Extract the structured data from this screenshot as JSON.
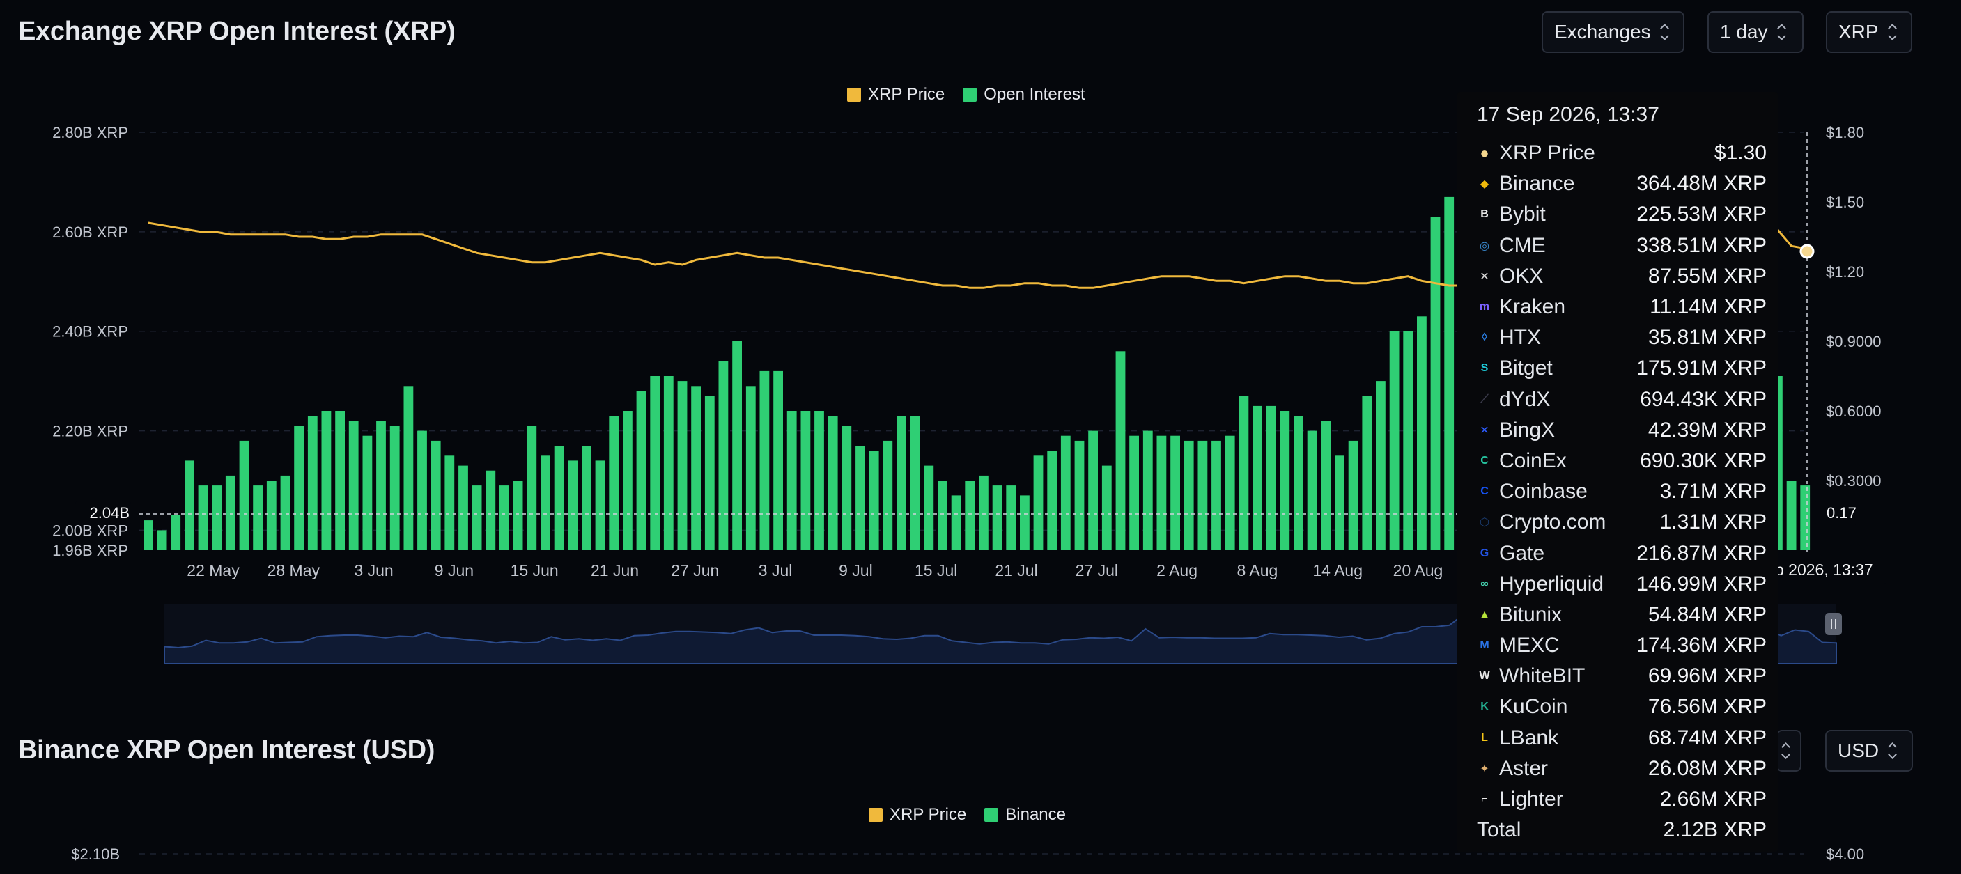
{
  "header": {
    "title": "Exchange XRP Open Interest (XRP)",
    "filters": [
      "Exchanges",
      "1 day",
      "XRP"
    ]
  },
  "second_header": {
    "title": "Binance XRP Open Interest (USD)",
    "currency": "USD",
    "legend": [
      "XRP Price",
      "Binance"
    ],
    "y_left_top": "$2.10B",
    "y_right_top": "$4.00"
  },
  "colors": {
    "bars": "#2fcf74",
    "price": "#f0b93c",
    "background": "#05070c",
    "navigator": "#2b3f72"
  },
  "chart_data": {
    "type": "bar",
    "title": "Exchange XRP Open Interest (XRP)",
    "legend": [
      "XRP Price",
      "Open Interest"
    ],
    "legend_position": "top-center",
    "grid": true,
    "y_left_ticks": [
      "2.80B XRP",
      "2.60B XRP",
      "2.40B XRP",
      "2.20B XRP",
      "2.00B XRP",
      "1.96B XRP"
    ],
    "y_left_range": [
      1.96,
      2.8
    ],
    "y_right_ticks": [
      "$1.80",
      "$1.50",
      "$1.20",
      "$0.9000",
      "$0.6000",
      "$0.3000"
    ],
    "y_right_range": [
      0,
      1.8
    ],
    "x_ticks": [
      "22 May",
      "28 May",
      "3 Jun",
      "9 Jun",
      "15 Jun",
      "21 Jun",
      "27 Jun",
      "3 Jul",
      "9 Jul",
      "15 Jul",
      "21 Jul",
      "27 Jul",
      "2 Aug",
      "8 Aug",
      "14 Aug",
      "20 Aug"
    ],
    "crosshair_left_label": "2.04B",
    "crosshair_right_label": "0.17",
    "crosshair_date_label": "p 2026, 13:37",
    "series": [
      {
        "name": "Open Interest",
        "unit": "B XRP",
        "values": [
          2.02,
          2.0,
          2.03,
          2.14,
          2.09,
          2.09,
          2.11,
          2.18,
          2.09,
          2.1,
          2.11,
          2.21,
          2.23,
          2.24,
          2.24,
          2.22,
          2.19,
          2.22,
          2.21,
          2.29,
          2.2,
          2.18,
          2.15,
          2.13,
          2.09,
          2.12,
          2.09,
          2.1,
          2.21,
          2.15,
          2.17,
          2.14,
          2.17,
          2.14,
          2.23,
          2.24,
          2.28,
          2.31,
          2.31,
          2.3,
          2.29,
          2.27,
          2.34,
          2.38,
          2.29,
          2.32,
          2.32,
          2.24,
          2.24,
          2.24,
          2.23,
          2.21,
          2.17,
          2.16,
          2.18,
          2.23,
          2.23,
          2.13,
          2.1,
          2.07,
          2.1,
          2.11,
          2.09,
          2.09,
          2.07,
          2.15,
          2.16,
          2.19,
          2.18,
          2.2,
          2.13,
          2.36,
          2.19,
          2.2,
          2.19,
          2.19,
          2.18,
          2.18,
          2.18,
          2.19,
          2.27,
          2.25,
          2.25,
          2.24,
          2.23,
          2.2,
          2.22,
          2.15,
          2.18,
          2.27,
          2.3,
          2.4,
          2.4,
          2.43,
          2.63,
          2.67,
          2.66,
          2.66,
          2.76,
          2.71,
          2.75,
          2.73,
          2.71,
          2.54,
          2.4,
          2.43,
          2.44,
          2.36,
          2.4,
          2.51,
          2.59,
          2.66,
          2.72,
          2.76,
          2.66,
          2.5,
          2.36,
          2.23,
          2.34,
          2.31,
          2.1,
          2.09
        ]
      },
      {
        "name": "XRP Price",
        "unit": "USD",
        "values": [
          1.41,
          1.4,
          1.39,
          1.38,
          1.37,
          1.37,
          1.36,
          1.36,
          1.36,
          1.36,
          1.36,
          1.35,
          1.35,
          1.34,
          1.34,
          1.35,
          1.35,
          1.36,
          1.36,
          1.36,
          1.36,
          1.34,
          1.32,
          1.3,
          1.28,
          1.27,
          1.26,
          1.25,
          1.24,
          1.24,
          1.25,
          1.26,
          1.27,
          1.28,
          1.27,
          1.26,
          1.25,
          1.23,
          1.24,
          1.23,
          1.25,
          1.26,
          1.27,
          1.28,
          1.27,
          1.26,
          1.26,
          1.25,
          1.24,
          1.23,
          1.22,
          1.21,
          1.2,
          1.19,
          1.18,
          1.17,
          1.16,
          1.15,
          1.14,
          1.14,
          1.13,
          1.13,
          1.14,
          1.14,
          1.15,
          1.15,
          1.14,
          1.14,
          1.13,
          1.13,
          1.14,
          1.15,
          1.16,
          1.17,
          1.18,
          1.18,
          1.18,
          1.17,
          1.16,
          1.16,
          1.15,
          1.16,
          1.17,
          1.18,
          1.18,
          1.17,
          1.16,
          1.16,
          1.15,
          1.15,
          1.16,
          1.17,
          1.18,
          1.16,
          1.15,
          1.14,
          1.14,
          1.13,
          1.13,
          1.12,
          1.12,
          1.12,
          1.12,
          1.12,
          1.12,
          1.12,
          1.11,
          1.11,
          1.12,
          1.11,
          1.11,
          1.12,
          1.11,
          1.18,
          1.32,
          1.38,
          1.4,
          1.4,
          1.39,
          1.38,
          1.31,
          1.3
        ]
      }
    ]
  },
  "tooltip": {
    "date": "17 Sep 2026, 13:37",
    "rows": [
      {
        "name": "XRP Price",
        "value": "$1.30",
        "icon": "price-dot-icon",
        "color": "#f5d78f"
      },
      {
        "name": "Binance",
        "value": "364.48M XRP",
        "icon": "binance-icon",
        "color": "#f0b90b"
      },
      {
        "name": "Bybit",
        "value": "225.53M XRP",
        "icon": "bybit-icon",
        "color": "#e9e9e9"
      },
      {
        "name": "CME",
        "value": "338.51M XRP",
        "icon": "cme-icon",
        "color": "#3c8ed6"
      },
      {
        "name": "OKX",
        "value": "87.55M XRP",
        "icon": "okx-icon",
        "color": "#d8d8d8"
      },
      {
        "name": "Kraken",
        "value": "11.14M XRP",
        "icon": "kraken-icon",
        "color": "#7b61ff"
      },
      {
        "name": "HTX",
        "value": "35.81M XRP",
        "icon": "htx-icon",
        "color": "#2a7de1"
      },
      {
        "name": "Bitget",
        "value": "175.91M XRP",
        "icon": "bitget-icon",
        "color": "#1ec8d6"
      },
      {
        "name": "dYdX",
        "value": "694.43K XRP",
        "icon": "dydx-icon",
        "color": "#3a3a4a"
      },
      {
        "name": "BingX",
        "value": "42.39M XRP",
        "icon": "bingx-icon",
        "color": "#2c5cff"
      },
      {
        "name": "CoinEx",
        "value": "690.30K XRP",
        "icon": "coinex-icon",
        "color": "#26c6a2"
      },
      {
        "name": "Coinbase",
        "value": "3.71M XRP",
        "icon": "coinbase-icon",
        "color": "#1652f0"
      },
      {
        "name": "Crypto.com",
        "value": "1.31M XRP",
        "icon": "cryptocom-icon",
        "color": "#1a3b6e"
      },
      {
        "name": "Gate",
        "value": "216.87M XRP",
        "icon": "gate-icon",
        "color": "#2354e6"
      },
      {
        "name": "Hyperliquid",
        "value": "146.99M XRP",
        "icon": "hyperliquid-icon",
        "color": "#46d3b0"
      },
      {
        "name": "Bitunix",
        "value": "54.84M XRP",
        "icon": "bitunix-icon",
        "color": "#b6e33a"
      },
      {
        "name": "MEXC",
        "value": "174.36M XRP",
        "icon": "mexc-icon",
        "color": "#2b73e6"
      },
      {
        "name": "WhiteBIT",
        "value": "69.96M XRP",
        "icon": "whitebit-icon",
        "color": "#e8e8e8"
      },
      {
        "name": "KuCoin",
        "value": "76.56M XRP",
        "icon": "kucoin-icon",
        "color": "#23af91"
      },
      {
        "name": "LBank",
        "value": "68.74M XRP",
        "icon": "lbank-icon",
        "color": "#f5c518"
      },
      {
        "name": "Aster",
        "value": "26.08M XRP",
        "icon": "aster-icon",
        "color": "#e0b070"
      },
      {
        "name": "Lighter",
        "value": "2.66M XRP",
        "icon": "lighter-icon",
        "color": "#e8e8e8"
      }
    ],
    "total_label": "Total",
    "total_value": "2.12B XRP"
  }
}
